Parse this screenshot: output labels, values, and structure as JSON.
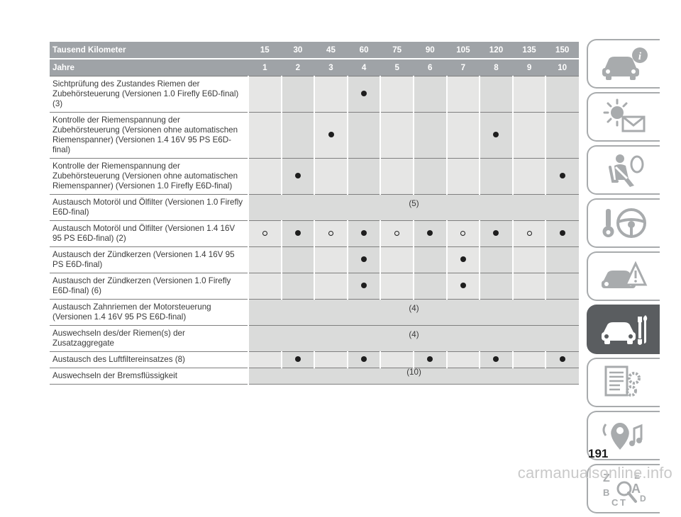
{
  "table": {
    "header_km_label": "Tausend Kilometer",
    "header_years_label": "Jahre",
    "km": [
      "15",
      "30",
      "45",
      "60",
      "75",
      "90",
      "105",
      "120",
      "135",
      "150"
    ],
    "years": [
      "1",
      "2",
      "3",
      "4",
      "5",
      "6",
      "7",
      "8",
      "9",
      "10"
    ],
    "rows": [
      {
        "label": "Sichtprüfung des Zustandes Riemen der Zubehörsteuerung (Versionen 1.0 Firefly E6D-final) (3)",
        "marks": [
          "",
          "",
          "",
          "dot",
          "",
          "",
          "",
          "",
          "",
          ""
        ]
      },
      {
        "label": "Kontrolle der Riemenspannung der Zubehörsteuerung (Versionen ohne automatischen Riemenspanner) (Versionen 1.4 16V 95 PS E6D-final)",
        "marks": [
          "",
          "",
          "dot",
          "",
          "",
          "",
          "",
          "dot",
          "",
          ""
        ]
      },
      {
        "label": "Kontrolle der Riemenspannung der Zubehörsteuerung (Versionen ohne automatischen Riemenspanner) (Versionen 1.0 Firefly E6D-final)",
        "marks": [
          "",
          "dot",
          "",
          "",
          "",
          "",
          "",
          "",
          "",
          "dot"
        ]
      },
      {
        "label": "Austausch Motoröl und Ölfilter (Versionen 1.0 Firefly E6D-final)",
        "span": "(5)"
      },
      {
        "label": "Austausch Motoröl und Ölfilter (Versionen 1.4 16V 95 PS E6D-final) (2)",
        "marks": [
          "ring",
          "dot",
          "ring",
          "dot",
          "ring",
          "dot",
          "ring",
          "dot",
          "ring",
          "dot"
        ]
      },
      {
        "label": "Austausch der Zündkerzen (Versionen 1.4 16V 95 PS E6D-final)",
        "marks": [
          "",
          "",
          "",
          "dot",
          "",
          "",
          "dot",
          "",
          "",
          ""
        ]
      },
      {
        "label": "Austausch der Zündkerzen (Versionen 1.0 Firefly E6D-final) (6)",
        "marks": [
          "",
          "",
          "",
          "dot",
          "",
          "",
          "dot",
          "",
          "",
          ""
        ]
      },
      {
        "label": "Austausch Zahnriemen der Motorsteuerung (Versionen 1.4 16V 95 PS E6D-final)",
        "span": "(4)"
      },
      {
        "label": "Auswechseln des/der Riemen(s) der Zusatzaggregate",
        "span": "(4)"
      },
      {
        "label": "Austausch des Luftfiltereinsatzes (8)",
        "marks": [
          "",
          "dot",
          "",
          "dot",
          "",
          "dot",
          "",
          "dot",
          "",
          "dot"
        ]
      },
      {
        "label": "Auswechseln der Bremsflüssigkeit",
        "span": "(10)"
      }
    ]
  },
  "sidebar": {
    "tabs": [
      {
        "icon": "car-info-icon",
        "active": false
      },
      {
        "icon": "warning-lights-message-icon",
        "active": false
      },
      {
        "icon": "seatbelt-airbag-icon",
        "active": false
      },
      {
        "icon": "key-steering-wheel-icon",
        "active": false
      },
      {
        "icon": "car-emergency-icon",
        "active": false
      },
      {
        "icon": "car-maintenance-icon",
        "active": true
      },
      {
        "icon": "technical-data-icon",
        "active": false
      },
      {
        "icon": "multimedia-icon",
        "active": false
      },
      {
        "icon": "index-icon",
        "active": false
      }
    ],
    "index_letters": [
      "Z",
      "E",
      "A",
      "B",
      "C",
      "D",
      "T"
    ]
  },
  "page_number": "191",
  "watermark": "carmanualsonline.info",
  "colors": {
    "header_bg": "#9fa3a7",
    "cell_odd": "#e6e6e5",
    "cell_even": "#dadbda",
    "sidebar_active": "#5a5d60",
    "sidebar_icon": "#a8abad"
  }
}
